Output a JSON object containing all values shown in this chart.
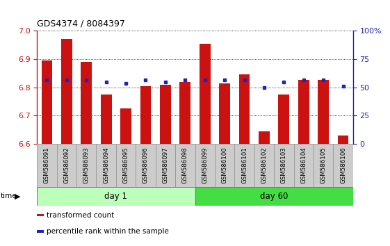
{
  "title": "GDS4374 / 8084397",
  "samples": [
    "GSM586091",
    "GSM586092",
    "GSM586093",
    "GSM586094",
    "GSM586095",
    "GSM586096",
    "GSM586097",
    "GSM586098",
    "GSM586099",
    "GSM586100",
    "GSM586101",
    "GSM586102",
    "GSM586103",
    "GSM586104",
    "GSM586105",
    "GSM586106"
  ],
  "red_values": [
    6.895,
    6.97,
    6.89,
    6.775,
    6.725,
    6.805,
    6.81,
    6.82,
    6.955,
    6.815,
    6.845,
    6.645,
    6.775,
    6.825,
    6.825,
    6.63
  ],
  "blue_values": [
    6.825,
    6.825,
    6.825,
    6.82,
    6.815,
    6.825,
    6.82,
    6.825,
    6.825,
    6.825,
    6.825,
    6.8,
    6.82,
    6.825,
    6.825,
    6.805
  ],
  "ymin": 6.6,
  "ymax": 7.0,
  "y_ticks_left": [
    6.6,
    6.7,
    6.8,
    6.9,
    7.0
  ],
  "y_ticks_right": [
    0,
    25,
    50,
    75,
    100
  ],
  "groups": [
    {
      "label": "day 1",
      "start": 0,
      "end": 8,
      "color": "#bbffbb"
    },
    {
      "label": "day 60",
      "start": 8,
      "end": 16,
      "color": "#44dd44"
    }
  ],
  "bar_color": "#cc1111",
  "blue_color": "#2222bb",
  "baseline": 6.6,
  "bar_width": 0.55,
  "legend_items": [
    {
      "color": "#cc1111",
      "label": "transformed count"
    },
    {
      "color": "#2222bb",
      "label": "percentile rank within the sample"
    }
  ],
  "tick_color_left": "#cc1111",
  "tick_color_right": "#2222bb",
  "xlabel_box_color": "#cccccc",
  "xlabel_box_edge": "#999999"
}
